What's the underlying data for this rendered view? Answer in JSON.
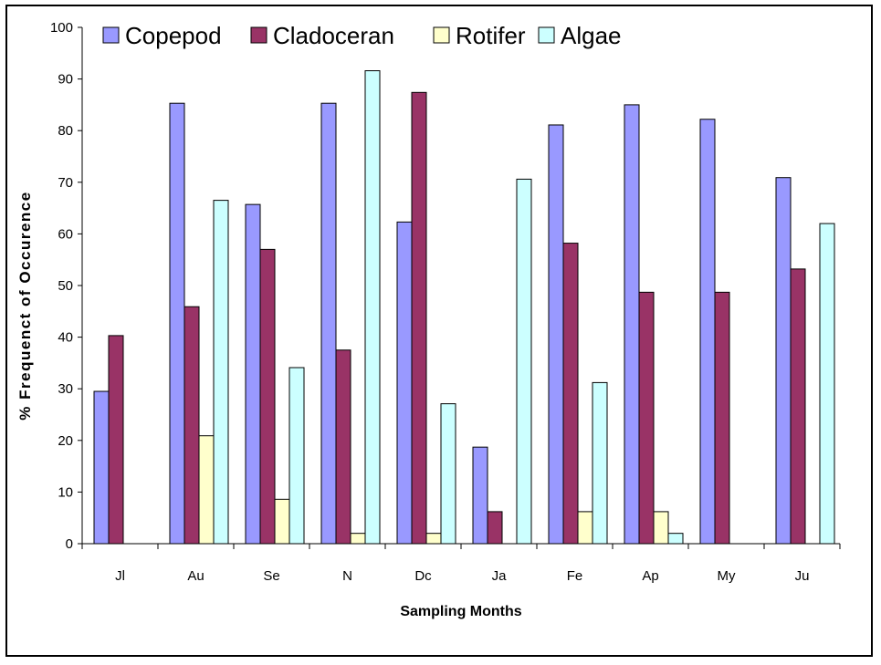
{
  "chart_data": {
    "type": "bar",
    "title": "",
    "xlabel": "Sampling Months",
    "ylabel": "% Frequenct of Occurence",
    "ylim": [
      0,
      100
    ],
    "yticks": [
      0,
      10,
      20,
      30,
      40,
      50,
      60,
      70,
      80,
      90,
      100
    ],
    "categories": [
      "Jl",
      "Au",
      "Se",
      "N",
      "Dc",
      "Ja",
      "Fe",
      "Ap",
      "My",
      "Ju"
    ],
    "legend_position": "top",
    "grid": false,
    "series": [
      {
        "name": "Copepod",
        "color": "#9999ff",
        "values": [
          29.5,
          85.3,
          65.7,
          85.3,
          62.3,
          18.7,
          81.1,
          85.0,
          82.2,
          70.9
        ]
      },
      {
        "name": "Cladoceran",
        "color": "#993366",
        "values": [
          40.3,
          45.9,
          57.0,
          37.5,
          87.4,
          6.2,
          58.2,
          48.7,
          48.7,
          53.2
        ]
      },
      {
        "name": "Rotifer",
        "color": "#ffffcc",
        "values": [
          0,
          20.9,
          8.6,
          2.0,
          2.0,
          0,
          6.2,
          6.2,
          0,
          0
        ]
      },
      {
        "name": "Algae",
        "color": "#ccffff",
        "values": [
          0,
          66.5,
          34.1,
          91.6,
          27.1,
          70.6,
          31.2,
          2.0,
          0,
          62.0
        ]
      }
    ]
  }
}
